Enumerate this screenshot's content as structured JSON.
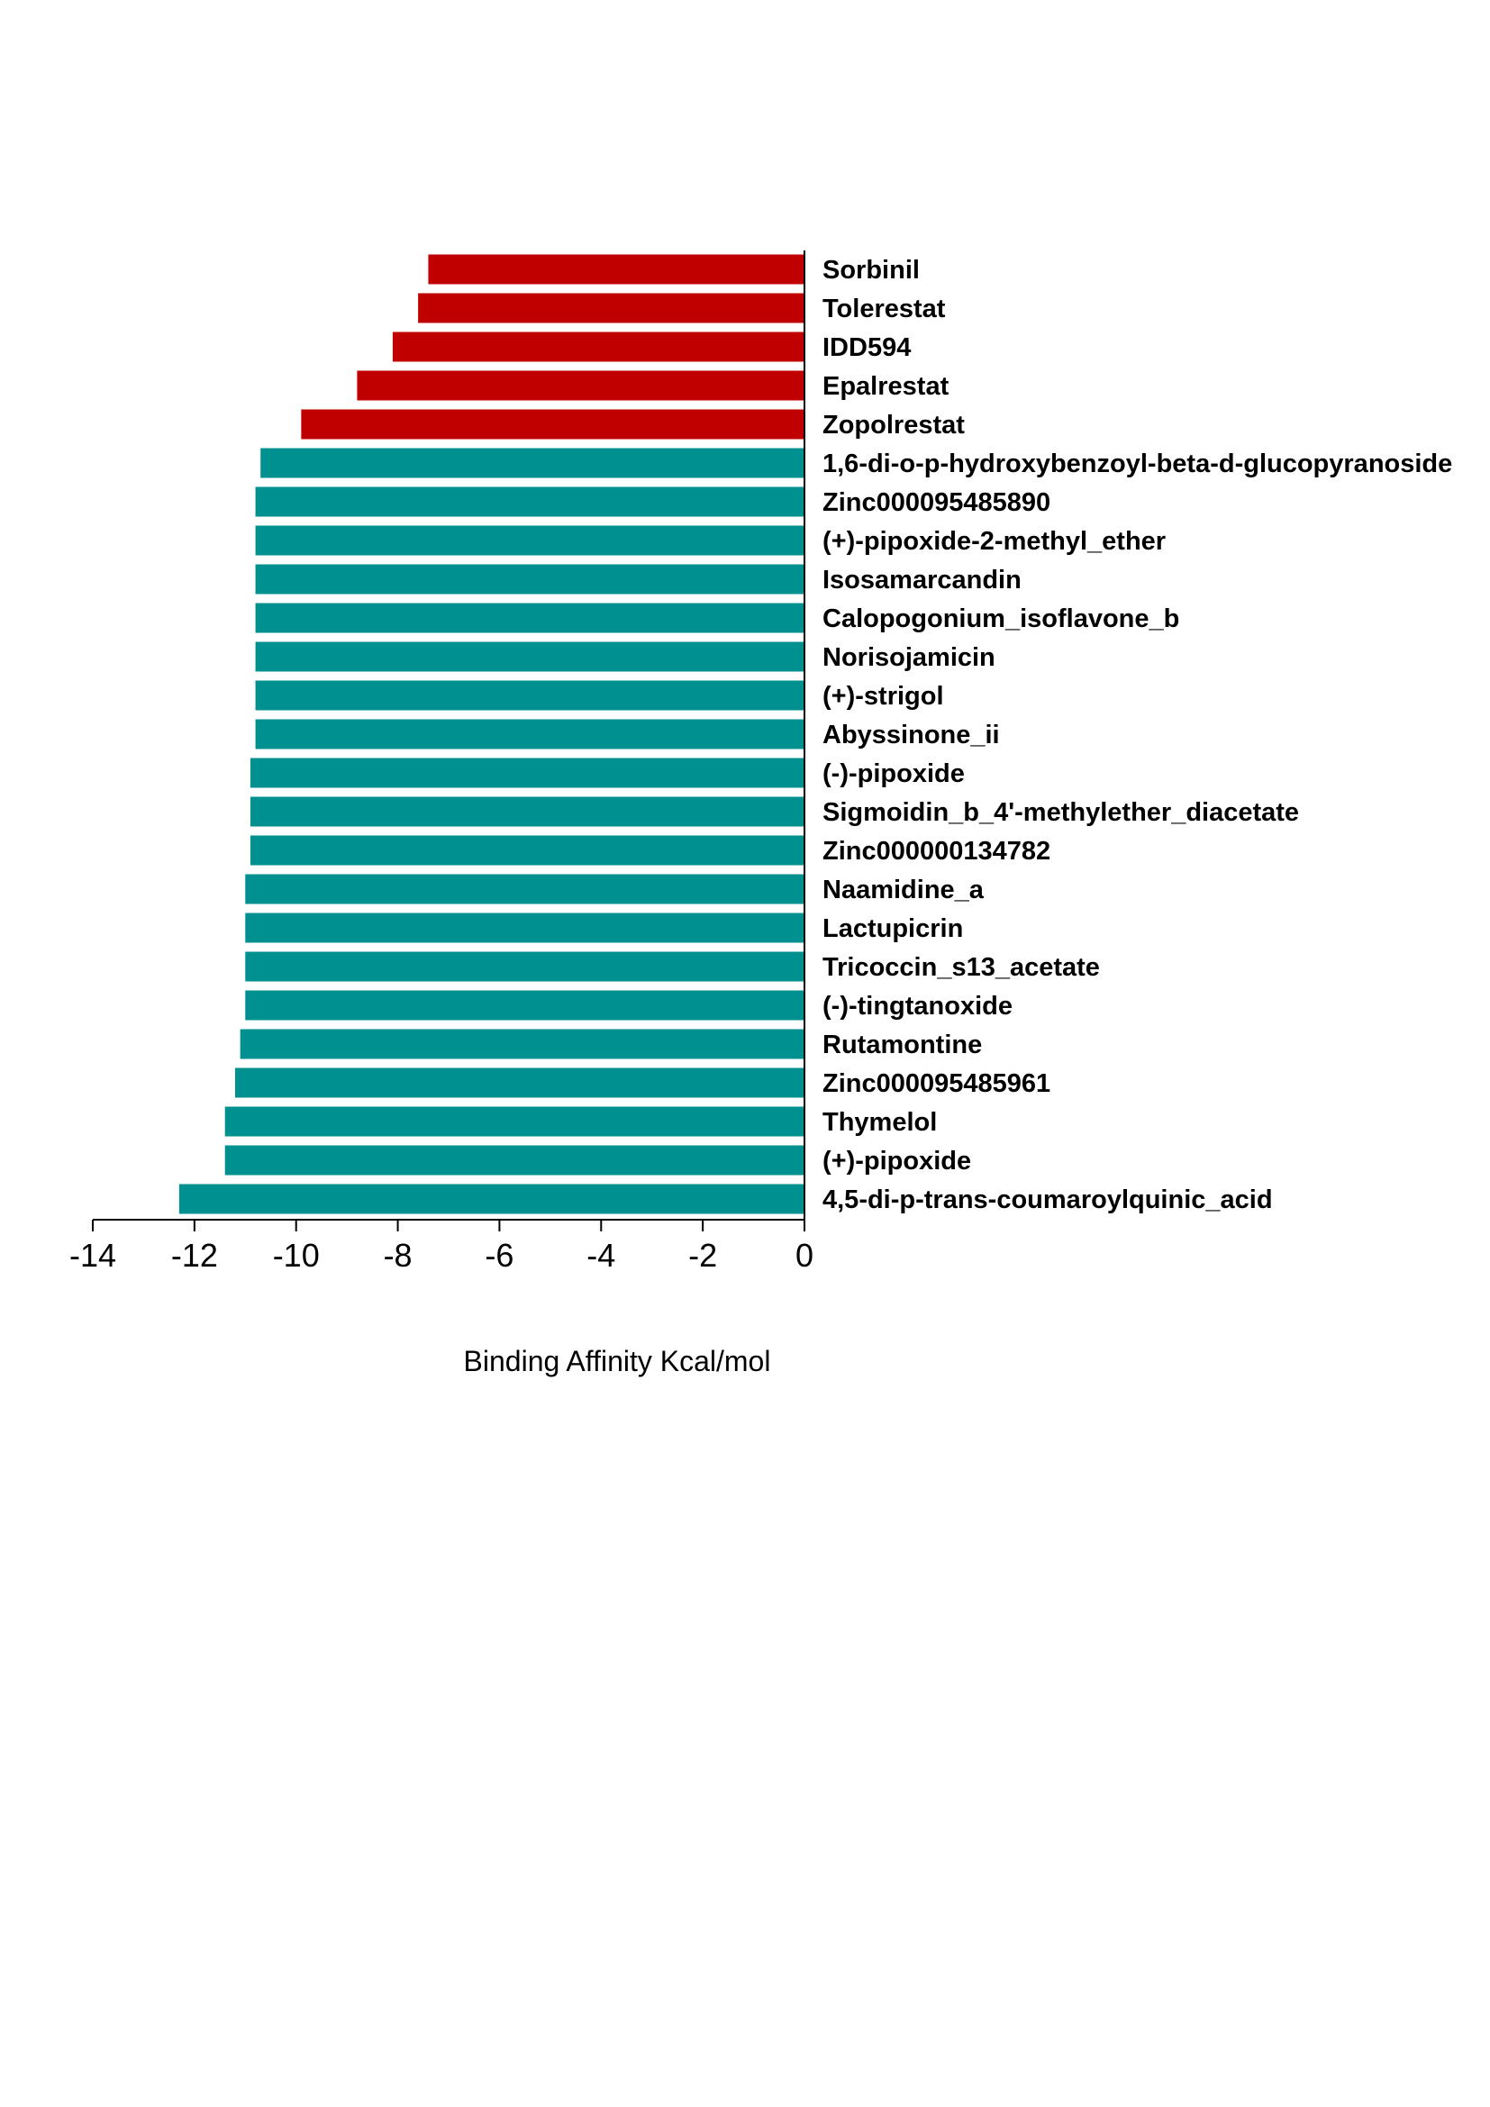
{
  "chart_data": {
    "type": "bar",
    "orientation": "horizontal",
    "title": "",
    "xlabel": "Binding Affinity Kcal/mol",
    "ylabel": "",
    "xlim": [
      -14,
      0
    ],
    "xticks": [
      -14,
      -12,
      -10,
      -8,
      -6,
      -4,
      -2,
      0
    ],
    "xtick_labels": [
      "-14",
      "-12",
      "-10",
      "-8",
      "-6",
      "-4",
      "-2",
      "0"
    ],
    "legend": "none",
    "grid": false,
    "colors": {
      "reference": "#c00000",
      "candidate": "#009090"
    },
    "categories": [
      "Sorbinil",
      "Tolerestat",
      "IDD594",
      "Epalrestat",
      "Zopolrestat",
      "1,6-di-o-p-hydroxybenzoyl-beta-d-glucopyranoside",
      "Zinc000095485890",
      "(+)-pipoxide-2-methyl_ether",
      "Isosamarcandin",
      "Calopogonium_isoflavone_b",
      "Norisojamicin",
      "(+)-strigol",
      "Abyssinone_ii",
      "(-)-pipoxide",
      "Sigmoidin_b_4'-methylether_diacetate",
      "Zinc000000134782",
      "Naamidine_a",
      "Lactupicrin",
      "Tricoccin_s13_acetate",
      "(-)-tingtanoxide",
      "Rutamontine",
      "Zinc000095485961",
      "Thymelol",
      "(+)-pipoxide",
      "4,5-di-p-trans-coumaroylquinic_acid"
    ],
    "values": [
      -7.4,
      -7.6,
      -8.1,
      -8.8,
      -9.9,
      -10.7,
      -10.8,
      -10.8,
      -10.8,
      -10.8,
      -10.8,
      -10.8,
      -10.8,
      -10.9,
      -10.9,
      -10.9,
      -11.0,
      -11.0,
      -11.0,
      -11.0,
      -11.1,
      -11.2,
      -11.4,
      -11.4,
      -12.3
    ],
    "groups": [
      "reference",
      "reference",
      "reference",
      "reference",
      "reference",
      "candidate",
      "candidate",
      "candidate",
      "candidate",
      "candidate",
      "candidate",
      "candidate",
      "candidate",
      "candidate",
      "candidate",
      "candidate",
      "candidate",
      "candidate",
      "candidate",
      "candidate",
      "candidate",
      "candidate",
      "candidate",
      "candidate",
      "candidate"
    ]
  }
}
